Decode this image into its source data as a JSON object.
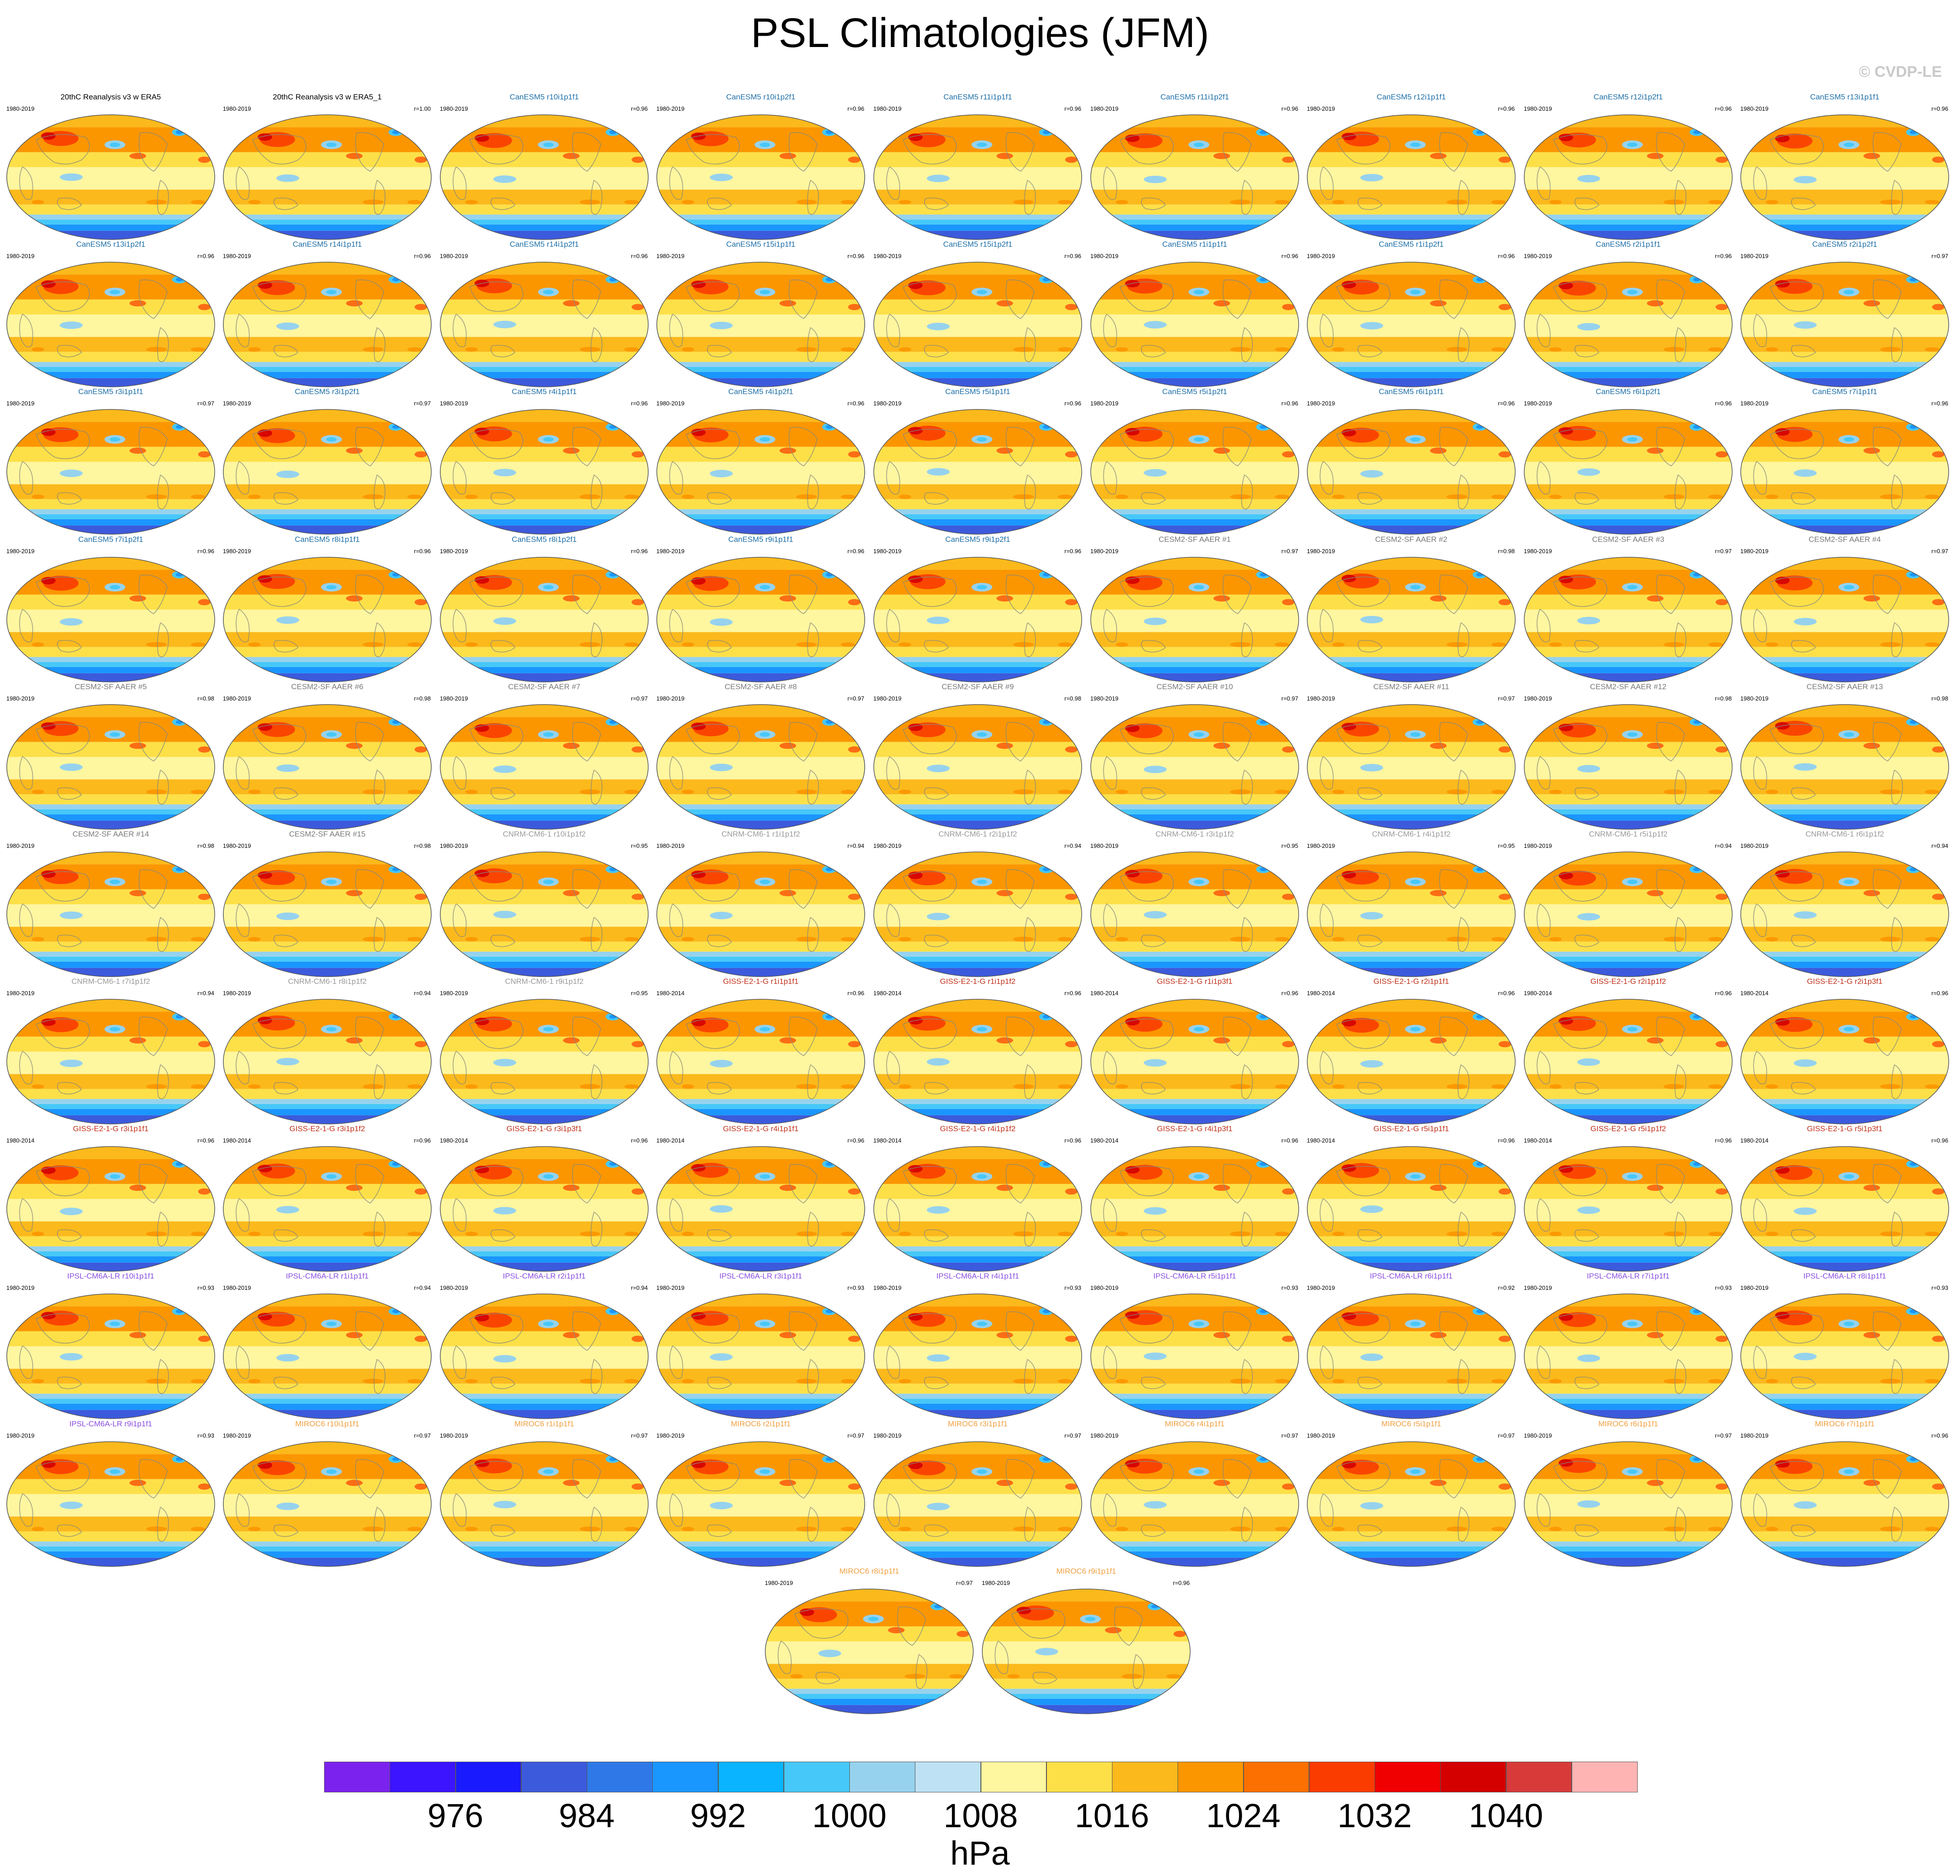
{
  "title": "PSL Climatologies (JFM)",
  "credit": "© CVDP-LE",
  "units": "hPa",
  "group_colors": {
    "obs": "#000000",
    "CanESM5": "#1e6fa8",
    "CESM2": "#7a7a7a",
    "CNRM": "#9a9a9a",
    "GISS": "#c0331c",
    "IPSL": "#8a4fe0",
    "MIROC": "#f0a040"
  },
  "colorbar": {
    "colors": [
      "#7b22ee",
      "#3d14ff",
      "#1a1aff",
      "#3c5adc",
      "#2f78e8",
      "#1a96ff",
      "#0ab4ff",
      "#46c8f8",
      "#96d2ee",
      "#bee2f4",
      "#fff6a0",
      "#fde048",
      "#fbb91c",
      "#fb9600",
      "#fb7000",
      "#fa3c00",
      "#f00000",
      "#d40000",
      "#d83a3a",
      "#ffb4b4"
    ],
    "labels": [
      "976",
      "984",
      "992",
      "1000",
      "1008",
      "1016",
      "1024",
      "1032",
      "1040"
    ]
  },
  "panels": [
    {
      "t": "20thC Reanalysis v3 w ERA5",
      "p": "1980-2019",
      "r": "",
      "g": "obs"
    },
    {
      "t": "20thC Reanalysis v3 w ERA5_1",
      "p": "1980-2019",
      "r": "r=1.00",
      "g": "obs"
    },
    {
      "t": "CanESM5 r10i1p1f1",
      "p": "1980-2019",
      "r": "r=0.96",
      "g": "CanESM5"
    },
    {
      "t": "CanESM5 r10i1p2f1",
      "p": "1980-2019",
      "r": "r=0.96",
      "g": "CanESM5"
    },
    {
      "t": "CanESM5 r11i1p1f1",
      "p": "1980-2019",
      "r": "r=0.96",
      "g": "CanESM5"
    },
    {
      "t": "CanESM5 r11i1p2f1",
      "p": "1980-2019",
      "r": "r=0.96",
      "g": "CanESM5"
    },
    {
      "t": "CanESM5 r12i1p1f1",
      "p": "1980-2019",
      "r": "r=0.96",
      "g": "CanESM5"
    },
    {
      "t": "CanESM5 r12i1p2f1",
      "p": "1980-2019",
      "r": "r=0.96",
      "g": "CanESM5"
    },
    {
      "t": "CanESM5 r13i1p1f1",
      "p": "1980-2019",
      "r": "r=0.96",
      "g": "CanESM5"
    },
    {
      "t": "CanESM5 r13i1p2f1",
      "p": "1980-2019",
      "r": "r=0.96",
      "g": "CanESM5"
    },
    {
      "t": "CanESM5 r14i1p1f1",
      "p": "1980-2019",
      "r": "r=0.96",
      "g": "CanESM5"
    },
    {
      "t": "CanESM5 r14i1p2f1",
      "p": "1980-2019",
      "r": "r=0.96",
      "g": "CanESM5"
    },
    {
      "t": "CanESM5 r15i1p1f1",
      "p": "1980-2019",
      "r": "r=0.96",
      "g": "CanESM5"
    },
    {
      "t": "CanESM5 r15i1p2f1",
      "p": "1980-2019",
      "r": "r=0.96",
      "g": "CanESM5"
    },
    {
      "t": "CanESM5 r1i1p1f1",
      "p": "1980-2019",
      "r": "r=0.96",
      "g": "CanESM5"
    },
    {
      "t": "CanESM5 r1i1p2f1",
      "p": "1980-2019",
      "r": "r=0.96",
      "g": "CanESM5"
    },
    {
      "t": "CanESM5 r2i1p1f1",
      "p": "1980-2019",
      "r": "r=0.96",
      "g": "CanESM5"
    },
    {
      "t": "CanESM5 r2i1p2f1",
      "p": "1980-2019",
      "r": "r=0.97",
      "g": "CanESM5"
    },
    {
      "t": "CanESM5 r3i1p1f1",
      "p": "1980-2019",
      "r": "r=0.97",
      "g": "CanESM5"
    },
    {
      "t": "CanESM5 r3i1p2f1",
      "p": "1980-2019",
      "r": "r=0.97",
      "g": "CanESM5"
    },
    {
      "t": "CanESM5 r4i1p1f1",
      "p": "1980-2019",
      "r": "r=0.96",
      "g": "CanESM5"
    },
    {
      "t": "CanESM5 r4i1p2f1",
      "p": "1980-2019",
      "r": "r=0.96",
      "g": "CanESM5"
    },
    {
      "t": "CanESM5 r5i1p1f1",
      "p": "1980-2019",
      "r": "r=0.96",
      "g": "CanESM5"
    },
    {
      "t": "CanESM5 r5i1p2f1",
      "p": "1980-2019",
      "r": "r=0.96",
      "g": "CanESM5"
    },
    {
      "t": "CanESM5 r6i1p1f1",
      "p": "1980-2019",
      "r": "r=0.96",
      "g": "CanESM5"
    },
    {
      "t": "CanESM5 r6i1p2f1",
      "p": "1980-2019",
      "r": "r=0.96",
      "g": "CanESM5"
    },
    {
      "t": "CanESM5 r7i1p1f1",
      "p": "1980-2019",
      "r": "r=0.96",
      "g": "CanESM5"
    },
    {
      "t": "CanESM5 r7i1p2f1",
      "p": "1980-2019",
      "r": "r=0.96",
      "g": "CanESM5"
    },
    {
      "t": "CanESM5 r8i1p1f1",
      "p": "1980-2019",
      "r": "r=0.96",
      "g": "CanESM5"
    },
    {
      "t": "CanESM5 r8i1p2f1",
      "p": "1980-2019",
      "r": "r=0.96",
      "g": "CanESM5"
    },
    {
      "t": "CanESM5 r9i1p1f1",
      "p": "1980-2019",
      "r": "r=0.96",
      "g": "CanESM5"
    },
    {
      "t": "CanESM5 r9i1p2f1",
      "p": "1980-2019",
      "r": "r=0.96",
      "g": "CanESM5"
    },
    {
      "t": "CESM2-SF AAER #1",
      "p": "1980-2019",
      "r": "r=0.97",
      "g": "CESM2"
    },
    {
      "t": "CESM2-SF AAER #2",
      "p": "1980-2019",
      "r": "r=0.98",
      "g": "CESM2"
    },
    {
      "t": "CESM2-SF AAER #3",
      "p": "1980-2019",
      "r": "r=0.97",
      "g": "CESM2"
    },
    {
      "t": "CESM2-SF AAER #4",
      "p": "1980-2019",
      "r": "r=0.97",
      "g": "CESM2"
    },
    {
      "t": "CESM2-SF AAER #5",
      "p": "1980-2019",
      "r": "r=0.98",
      "g": "CESM2"
    },
    {
      "t": "CESM2-SF AAER #6",
      "p": "1980-2019",
      "r": "r=0.98",
      "g": "CESM2"
    },
    {
      "t": "CESM2-SF AAER #7",
      "p": "1980-2019",
      "r": "r=0.97",
      "g": "CESM2"
    },
    {
      "t": "CESM2-SF AAER #8",
      "p": "1980-2019",
      "r": "r=0.97",
      "g": "CESM2"
    },
    {
      "t": "CESM2-SF AAER #9",
      "p": "1980-2019",
      "r": "r=0.98",
      "g": "CESM2"
    },
    {
      "t": "CESM2-SF AAER #10",
      "p": "1980-2019",
      "r": "r=0.97",
      "g": "CESM2"
    },
    {
      "t": "CESM2-SF AAER #11",
      "p": "1980-2019",
      "r": "r=0.97",
      "g": "CESM2"
    },
    {
      "t": "CESM2-SF AAER #12",
      "p": "1980-2019",
      "r": "r=0.98",
      "g": "CESM2"
    },
    {
      "t": "CESM2-SF AAER #13",
      "p": "1980-2019",
      "r": "r=0.98",
      "g": "CESM2"
    },
    {
      "t": "CESM2-SF AAER #14",
      "p": "1980-2019",
      "r": "r=0.98",
      "g": "CESM2"
    },
    {
      "t": "CESM2-SF AAER #15",
      "p": "1980-2019",
      "r": "r=0.98",
      "g": "CESM2"
    },
    {
      "t": "CNRM-CM6-1 r10i1p1f2",
      "p": "1980-2019",
      "r": "r=0.95",
      "g": "CNRM"
    },
    {
      "t": "CNRM-CM6-1 r1i1p1f2",
      "p": "1980-2019",
      "r": "r=0.94",
      "g": "CNRM"
    },
    {
      "t": "CNRM-CM6-1 r2i1p1f2",
      "p": "1980-2019",
      "r": "r=0.94",
      "g": "CNRM"
    },
    {
      "t": "CNRM-CM6-1 r3i1p1f2",
      "p": "1980-2019",
      "r": "r=0.95",
      "g": "CNRM"
    },
    {
      "t": "CNRM-CM6-1 r4i1p1f2",
      "p": "1980-2019",
      "r": "r=0.95",
      "g": "CNRM"
    },
    {
      "t": "CNRM-CM6-1 r5i1p1f2",
      "p": "1980-2019",
      "r": "r=0.94",
      "g": "CNRM"
    },
    {
      "t": "CNRM-CM6-1 r6i1p1f2",
      "p": "1980-2019",
      "r": "r=0.94",
      "g": "CNRM"
    },
    {
      "t": "CNRM-CM6-1 r7i1p1f2",
      "p": "1980-2019",
      "r": "r=0.94",
      "g": "CNRM"
    },
    {
      "t": "CNRM-CM6-1 r8i1p1f2",
      "p": "1980-2019",
      "r": "r=0.94",
      "g": "CNRM"
    },
    {
      "t": "CNRM-CM6-1 r9i1p1f2",
      "p": "1980-2019",
      "r": "r=0.95",
      "g": "CNRM"
    },
    {
      "t": "GISS-E2-1-G r1i1p1f1",
      "p": "1980-2014",
      "r": "r=0.96",
      "g": "GISS"
    },
    {
      "t": "GISS-E2-1-G r1i1p1f2",
      "p": "1980-2014",
      "r": "r=0.96",
      "g": "GISS"
    },
    {
      "t": "GISS-E2-1-G r1i1p3f1",
      "p": "1980-2014",
      "r": "r=0.96",
      "g": "GISS"
    },
    {
      "t": "GISS-E2-1-G r2i1p1f1",
      "p": "1980-2014",
      "r": "r=0.96",
      "g": "GISS"
    },
    {
      "t": "GISS-E2-1-G r2i1p1f2",
      "p": "1980-2014",
      "r": "r=0.96",
      "g": "GISS"
    },
    {
      "t": "GISS-E2-1-G r2i1p3f1",
      "p": "1980-2014",
      "r": "r=0.96",
      "g": "GISS"
    },
    {
      "t": "GISS-E2-1-G r3i1p1f1",
      "p": "1980-2014",
      "r": "r=0.96",
      "g": "GISS"
    },
    {
      "t": "GISS-E2-1-G r3i1p1f2",
      "p": "1980-2014",
      "r": "r=0.96",
      "g": "GISS"
    },
    {
      "t": "GISS-E2-1-G r3i1p3f1",
      "p": "1980-2014",
      "r": "r=0.96",
      "g": "GISS"
    },
    {
      "t": "GISS-E2-1-G r4i1p1f1",
      "p": "1980-2014",
      "r": "r=0.96",
      "g": "GISS"
    },
    {
      "t": "GISS-E2-1-G r4i1p1f2",
      "p": "1980-2014",
      "r": "r=0.96",
      "g": "GISS"
    },
    {
      "t": "GISS-E2-1-G r4i1p3f1",
      "p": "1980-2014",
      "r": "r=0.96",
      "g": "GISS"
    },
    {
      "t": "GISS-E2-1-G r5i1p1f1",
      "p": "1980-2014",
      "r": "r=0.96",
      "g": "GISS"
    },
    {
      "t": "GISS-E2-1-G r5i1p1f2",
      "p": "1980-2014",
      "r": "r=0.96",
      "g": "GISS"
    },
    {
      "t": "GISS-E2-1-G r5i1p3f1",
      "p": "1980-2014",
      "r": "r=0.96",
      "g": "GISS"
    },
    {
      "t": "IPSL-CM6A-LR r10i1p1f1",
      "p": "1980-2019",
      "r": "r=0.93",
      "g": "IPSL"
    },
    {
      "t": "IPSL-CM6A-LR r1i1p1f1",
      "p": "1980-2019",
      "r": "r=0.94",
      "g": "IPSL"
    },
    {
      "t": "IPSL-CM6A-LR r2i1p1f1",
      "p": "1980-2019",
      "r": "r=0.94",
      "g": "IPSL"
    },
    {
      "t": "IPSL-CM6A-LR r3i1p1f1",
      "p": "1980-2019",
      "r": "r=0.93",
      "g": "IPSL"
    },
    {
      "t": "IPSL-CM6A-LR r4i1p1f1",
      "p": "1980-2019",
      "r": "r=0.93",
      "g": "IPSL"
    },
    {
      "t": "IPSL-CM6A-LR r5i1p1f1",
      "p": "1980-2019",
      "r": "r=0.93",
      "g": "IPSL"
    },
    {
      "t": "IPSL-CM6A-LR r6i1p1f1",
      "p": "1980-2019",
      "r": "r=0.92",
      "g": "IPSL"
    },
    {
      "t": "IPSL-CM6A-LR r7i1p1f1",
      "p": "1980-2019",
      "r": "r=0.93",
      "g": "IPSL"
    },
    {
      "t": "IPSL-CM6A-LR r8i1p1f1",
      "p": "1980-2019",
      "r": "r=0.93",
      "g": "IPSL"
    },
    {
      "t": "IPSL-CM6A-LR r9i1p1f1",
      "p": "1980-2019",
      "r": "r=0.93",
      "g": "IPSL"
    },
    {
      "t": "MIROC6 r10i1p1f1",
      "p": "1980-2019",
      "r": "r=0.97",
      "g": "MIROC"
    },
    {
      "t": "MIROC6 r1i1p1f1",
      "p": "1980-2019",
      "r": "r=0.97",
      "g": "MIROC"
    },
    {
      "t": "MIROC6 r2i1p1f1",
      "p": "1980-2019",
      "r": "r=0.97",
      "g": "MIROC"
    },
    {
      "t": "MIROC6 r3i1p1f1",
      "p": "1980-2019",
      "r": "r=0.97",
      "g": "MIROC"
    },
    {
      "t": "MIROC6 r4i1p1f1",
      "p": "1980-2019",
      "r": "r=0.97",
      "g": "MIROC"
    },
    {
      "t": "MIROC6 r5i1p1f1",
      "p": "1980-2019",
      "r": "r=0.97",
      "g": "MIROC"
    },
    {
      "t": "MIROC6 r6i1p1f1",
      "p": "1980-2019",
      "r": "r=0.97",
      "g": "MIROC"
    },
    {
      "t": "MIROC6 r7i1p1f1",
      "p": "1980-2019",
      "r": "r=0.96",
      "g": "MIROC"
    },
    {
      "t": "MIROC6 r8i1p1f1",
      "p": "1980-2019",
      "r": "r=0.97",
      "g": "MIROC"
    },
    {
      "t": "MIROC6 r9i1p1f1",
      "p": "1980-2019",
      "r": "r=0.96",
      "g": "MIROC"
    }
  ]
}
